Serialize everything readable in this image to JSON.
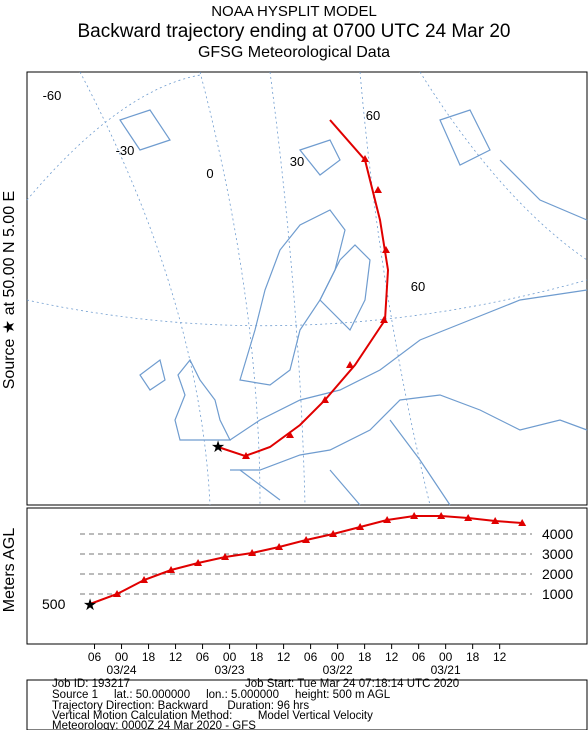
{
  "header": {
    "lines": [
      "NOAA HYSPLIT MODEL",
      "Backward trajectory ending at 0700 UTC 24 Mar 20",
      "GFSG Meteorological Data"
    ]
  },
  "map": {
    "side_label": "Source ★ at   50.00 N   5.00 E",
    "graticule_labels": [
      "-60",
      "-30",
      "0",
      "30",
      "60",
      "60"
    ]
  },
  "chart_data": {
    "type": "line",
    "y_label": "Meters AGL",
    "x": [
      0,
      6,
      12,
      18,
      24,
      30,
      36,
      42,
      48,
      54,
      60,
      66,
      72,
      78,
      84,
      90,
      96
    ],
    "series": [
      {
        "color": "#e00000",
        "values": [
          500,
          1000,
          1700,
          2200,
          2550,
          2850,
          3050,
          3350,
          3700,
          4000,
          4350,
          4700,
          4900,
          4900,
          4800,
          4650,
          4550
        ]
      }
    ],
    "xlim": [
      -14,
      110.4
    ],
    "ylim": [
      -1500,
      5300
    ],
    "xticks": [
      {
        "value": 1,
        "label": "06"
      },
      {
        "value": 7,
        "label": "00"
      },
      {
        "value": 13,
        "label": "18"
      },
      {
        "value": 19,
        "label": "12"
      },
      {
        "value": 25,
        "label": "06"
      },
      {
        "value": 31,
        "label": "00"
      },
      {
        "value": 37,
        "label": "18"
      },
      {
        "value": 43,
        "label": "12"
      },
      {
        "value": 49,
        "label": "06"
      },
      {
        "value": 55,
        "label": "00"
      },
      {
        "value": 61,
        "label": "18"
      },
      {
        "value": 67,
        "label": "12"
      },
      {
        "value": 73,
        "label": "06"
      },
      {
        "value": 79,
        "label": "00"
      },
      {
        "value": 85,
        "label": "18"
      },
      {
        "value": 91,
        "label": "12"
      }
    ],
    "date_ticks": [
      {
        "value": 7,
        "label": "03/24"
      },
      {
        "value": 31,
        "label": "03/23"
      },
      {
        "value": 55,
        "label": "03/22"
      },
      {
        "value": 79,
        "label": "03/21"
      }
    ],
    "yticks": [
      1000,
      2000,
      3000,
      4000
    ],
    "source_height": 500
  },
  "footer": {
    "lines": [
      [
        "Job ID: 193217",
        "Job Start: Tue Mar 24 07:18:14 UTC 2020"
      ],
      [
        "Source 1     lat.: 50.000000     lon.: 5.000000     height: 500 m AGL"
      ],
      [
        "Trajectory Direction: Backward      Duration: 96 hrs"
      ],
      [
        "Vertical Motion Calculation Method:        Model Vertical Velocity"
      ],
      [
        "Meteorology: 0000Z 24 Mar 2020 - GFS"
      ]
    ]
  }
}
